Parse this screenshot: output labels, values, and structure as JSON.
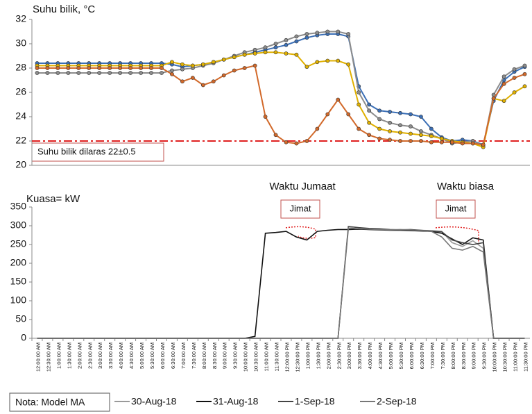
{
  "chart_data": [
    {
      "type": "line",
      "y_label": "Suhu bilik, °C",
      "ylim": [
        20,
        32
      ],
      "yticks": [
        20,
        22,
        24,
        26,
        28,
        30,
        32
      ],
      "markers": true,
      "reference_line": {
        "value": 22,
        "color": "#e02020",
        "label": "Suhu bilik dilaras 22±0.5"
      },
      "series": [
        {
          "color": "#3b6fb6",
          "values": [
            28.4,
            28.4,
            28.4,
            28.4,
            28.4,
            28.4,
            28.4,
            28.4,
            28.4,
            28.4,
            28.4,
            28.4,
            28.4,
            28.3,
            28.1,
            28.2,
            28.3,
            28.5,
            28.7,
            28.9,
            29.1,
            29.3,
            29.5,
            29.7,
            29.9,
            30.2,
            30.5,
            30.7,
            30.8,
            30.8,
            30.6,
            26.5,
            25,
            24.5,
            24.4,
            24.3,
            24.2,
            24,
            23,
            22.3,
            22,
            22.1,
            22,
            21.7,
            25.3,
            27,
            27.7,
            28.1
          ]
        },
        {
          "color": "#8c8c8c",
          "values": [
            27.6,
            27.6,
            27.6,
            27.6,
            27.6,
            27.6,
            27.6,
            27.6,
            27.6,
            27.6,
            27.6,
            27.6,
            27.6,
            27.8,
            27.9,
            28,
            28.2,
            28.4,
            28.7,
            29,
            29.3,
            29.5,
            29.7,
            30,
            30.3,
            30.6,
            30.8,
            30.9,
            31,
            31,
            30.8,
            26,
            24.5,
            23.8,
            23.5,
            23.3,
            23.2,
            22.8,
            22.5,
            22.2,
            21.8,
            21.9,
            22,
            21.6,
            25.8,
            27.3,
            27.9,
            28.2
          ]
        },
        {
          "color": "#e0b000",
          "values": [
            28.2,
            28.2,
            28.2,
            28.2,
            28.2,
            28.2,
            28.2,
            28.2,
            28.2,
            28.2,
            28.2,
            28.2,
            28.2,
            28.5,
            28.3,
            28.2,
            28.3,
            28.5,
            28.7,
            28.9,
            29.1,
            29.2,
            29.3,
            29.3,
            29.2,
            29.1,
            28.1,
            28.5,
            28.6,
            28.6,
            28.3,
            25,
            23.5,
            23,
            22.8,
            22.7,
            22.6,
            22.5,
            22.4,
            22.2,
            22,
            21.9,
            21.8,
            21.5,
            25.5,
            25.3,
            26,
            26.5
          ]
        },
        {
          "color": "#d2692a",
          "values": [
            28,
            28,
            28,
            28,
            28,
            28,
            28,
            28,
            28,
            28,
            28,
            28,
            28,
            27.5,
            26.9,
            27.2,
            26.6,
            26.9,
            27.4,
            27.8,
            28,
            28.2,
            24,
            22.5,
            21.9,
            21.8,
            22,
            23,
            24.2,
            25.4,
            24.2,
            23,
            22.5,
            22.2,
            22.1,
            22,
            22,
            22,
            21.9,
            21.9,
            21.9,
            21.8,
            21.8,
            21.7,
            25.5,
            26.7,
            27.2,
            27.5
          ]
        }
      ]
    },
    {
      "type": "line",
      "y_label": "Kuasa= kW",
      "ylim": [
        0,
        350
      ],
      "yticks": [
        0,
        50,
        100,
        150,
        200,
        250,
        300,
        350
      ],
      "legend_title": "Nota: Model MA",
      "annotations": [
        "Waktu Jumaat",
        "Waktu biasa",
        "Jimat",
        "Jimat"
      ],
      "categories": [
        "12:00:00 AM",
        "12:30:00 AM",
        "1:00:00 AM",
        "1:30:00 AM",
        "2:00:00 AM",
        "2:30:00 AM",
        "3:00:00 AM",
        "3:30:00 AM",
        "4:00:00 AM",
        "4:30:00 AM",
        "5:00:00 AM",
        "5:30:00 AM",
        "6:00:00 AM",
        "6:30:00 AM",
        "7:00:00 AM",
        "7:30:00 AM",
        "8:00:00 AM",
        "8:30:00 AM",
        "9:00:00 AM",
        "9:30:00 AM",
        "10:00:00 AM",
        "10:30:00 AM",
        "11:00:00 AM",
        "11:30:00 AM",
        "12:00:00 PM",
        "12:30:00 PM",
        "1:00:00 PM",
        "1:30:00 PM",
        "2:00:00 PM",
        "2:30:00 PM",
        "3:00:00 PM",
        "3:30:00 PM",
        "4:00:00 PM",
        "4:30:00 PM",
        "5:00:00 PM",
        "5:30:00 PM",
        "6:00:00 PM",
        "6:30:00 PM",
        "7:00:00 PM",
        "7:30:00 PM",
        "8:00:00 PM",
        "8:30:00 PM",
        "9:00:00 PM",
        "9:30:00 PM",
        "10:00:00 PM",
        "10:30:00 PM",
        "11:00:00 PM",
        "11:30:00 PM"
      ],
      "series": [
        {
          "name": "30-Aug-18",
          "color": "#9a9a9a",
          "values": [
            0,
            0,
            0,
            0,
            0,
            0,
            0,
            0,
            0,
            0,
            0,
            0,
            0,
            0,
            0,
            0,
            0,
            0,
            0,
            0,
            0,
            0,
            0,
            0,
            0,
            0,
            0,
            0,
            0,
            0,
            290,
            292,
            290,
            290,
            289,
            288,
            289,
            288,
            287,
            285,
            255,
            245,
            260,
            240,
            0,
            0,
            0,
            0
          ]
        },
        {
          "name": "31-Aug-18",
          "color": "#111111",
          "values": [
            0,
            0,
            0,
            0,
            0,
            0,
            0,
            0,
            0,
            0,
            0,
            0,
            0,
            0,
            0,
            0,
            0,
            0,
            0,
            0,
            0,
            5,
            280,
            282,
            285,
            270,
            262,
            285,
            288,
            290,
            290,
            291,
            290,
            289,
            288,
            288,
            287,
            286,
            285,
            280,
            265,
            250,
            268,
            262,
            0,
            0,
            0,
            0
          ]
        },
        {
          "name": "1-Sep-18",
          "color": "#444444",
          "values": [
            0,
            0,
            0,
            0,
            0,
            0,
            0,
            0,
            0,
            0,
            0,
            0,
            0,
            0,
            0,
            0,
            0,
            0,
            0,
            0,
            0,
            0,
            0,
            0,
            0,
            0,
            0,
            0,
            0,
            0,
            298,
            295,
            293,
            292,
            290,
            289,
            290,
            288,
            286,
            284,
            262,
            255,
            250,
            255,
            0,
            0,
            0,
            0
          ]
        },
        {
          "name": "2-Sep-18",
          "color": "#777777",
          "values": [
            0,
            0,
            0,
            0,
            0,
            0,
            0,
            0,
            0,
            0,
            0,
            0,
            0,
            0,
            0,
            0,
            0,
            0,
            0,
            0,
            0,
            0,
            0,
            0,
            0,
            0,
            0,
            0,
            0,
            0,
            294,
            292,
            291,
            290,
            289,
            290,
            289,
            287,
            285,
            270,
            240,
            235,
            245,
            230,
            0,
            0,
            0,
            0
          ]
        }
      ]
    }
  ]
}
